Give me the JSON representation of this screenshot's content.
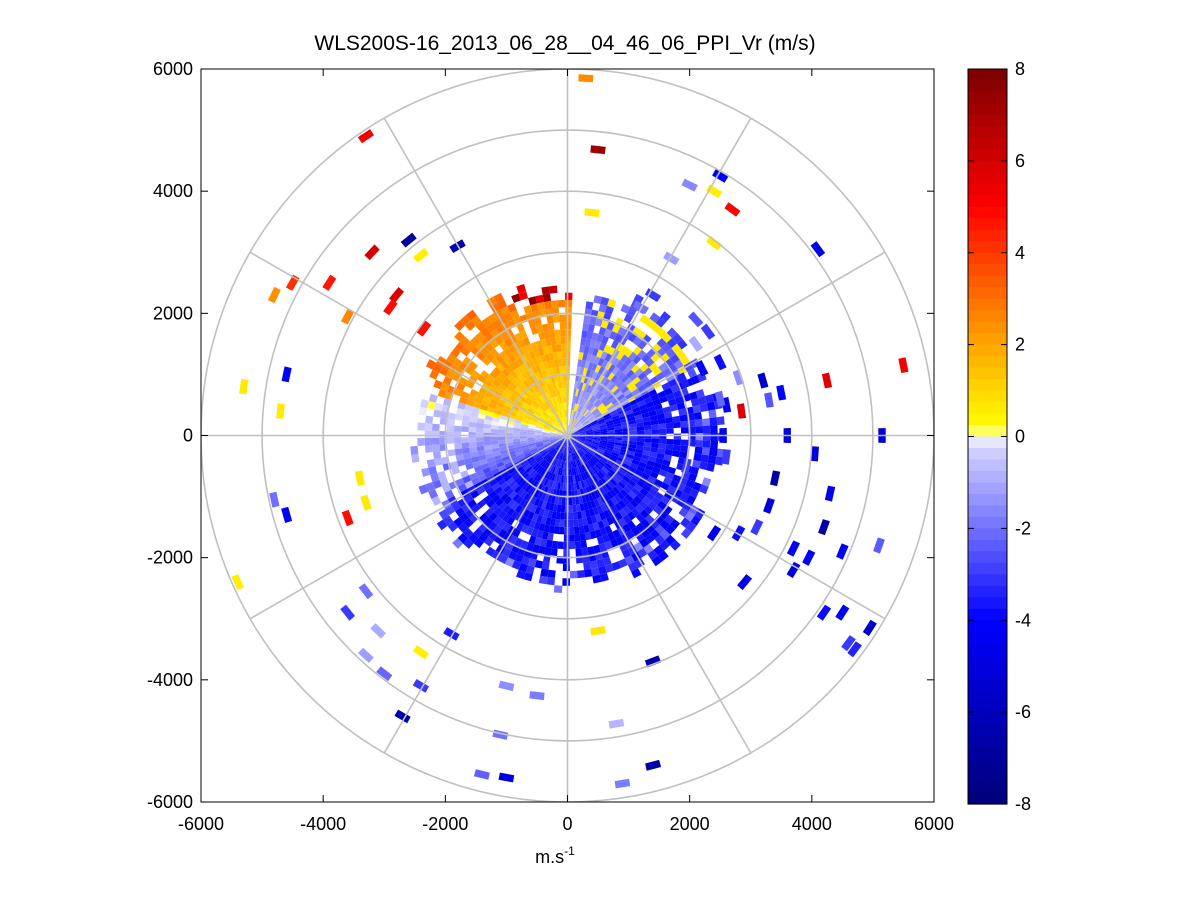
{
  "chart_data": {
    "type": "heatmap",
    "subtype": "polar-ppi-scan",
    "title": "WLS200S-16_2013_06_28__04_46_06_PPI_Vr (m/s)",
    "xlabel": "m.s",
    "xlabel_superscript": "-1",
    "ylabel": "",
    "xlim": [
      -6000,
      6000
    ],
    "ylim": [
      -6000,
      6000
    ],
    "x_ticks": [
      "-6000",
      "-4000",
      "-2000",
      "0",
      "2000",
      "4000",
      "6000"
    ],
    "y_ticks": [
      "6000",
      "4000",
      "2000",
      "0",
      "-2000",
      "-4000",
      "-6000"
    ],
    "range_rings_m": [
      1000,
      2000,
      3000,
      4000,
      5000,
      6000
    ],
    "spoke_angles_deg": [
      0,
      30,
      60,
      90,
      120,
      150,
      180,
      210,
      240,
      270,
      300,
      330
    ],
    "colorbar": {
      "range": [
        -8,
        8
      ],
      "ticks": [
        "8",
        "6",
        "4",
        "2",
        "0",
        "-2",
        "-4",
        "-6",
        "-8"
      ],
      "stops": [
        "#00007a",
        "#0000ff",
        "#d7d7ff",
        "#ffffff",
        "#ffff00",
        "#ff8c00",
        "#ff0000",
        "#7a0000"
      ]
    },
    "inner_field": {
      "max_range_m": 2450,
      "approach_sector": {
        "from_az_deg": 90,
        "to_az_deg": 285,
        "typical_vr": [
          -2.5,
          -4.5
        ]
      },
      "recede_sector": {
        "from_az_deg": 285,
        "to_az_deg": 360,
        "typical_vr": [
          1.0,
          3.0
        ]
      },
      "gap_sector": {
        "from_az_deg": 0,
        "to_az_deg": 8
      }
    },
    "sparse_gates": [
      {
        "x": 300,
        "y": 5850,
        "vr": 2.5
      },
      {
        "x": 500,
        "y": 4680,
        "vr": 7.2
      },
      {
        "x": 400,
        "y": 3650,
        "vr": 0.6
      },
      {
        "x": -3300,
        "y": 4900,
        "vr": 5.2
      },
      {
        "x": -3200,
        "y": 3000,
        "vr": 6.0
      },
      {
        "x": -2600,
        "y": 3200,
        "vr": -7.0
      },
      {
        "x": -2400,
        "y": 2950,
        "vr": 0.5
      },
      {
        "x": -1800,
        "y": 3100,
        "vr": -6.5
      },
      {
        "x": -4500,
        "y": 2500,
        "vr": 4.2
      },
      {
        "x": -4800,
        "y": 2300,
        "vr": 2.4
      },
      {
        "x": -3900,
        "y": 2500,
        "vr": 4.6
      },
      {
        "x": -3600,
        "y": 1950,
        "vr": 2.6
      },
      {
        "x": -2800,
        "y": 2300,
        "vr": 5.8
      },
      {
        "x": -2900,
        "y": 2100,
        "vr": 4.8
      },
      {
        "x": -2350,
        "y": 1750,
        "vr": 4.7
      },
      {
        "x": -5300,
        "y": 800,
        "vr": 0.6
      },
      {
        "x": -4600,
        "y": 1000,
        "vr": -4.2
      },
      {
        "x": -4700,
        "y": 400,
        "vr": 0.6
      },
      {
        "x": -3400,
        "y": -700,
        "vr": 0.6
      },
      {
        "x": -3300,
        "y": -1100,
        "vr": 0.6
      },
      {
        "x": -3600,
        "y": -1350,
        "vr": 4.8
      },
      {
        "x": -4800,
        "y": -1050,
        "vr": -2.0
      },
      {
        "x": -4600,
        "y": -1300,
        "vr": -4.2
      },
      {
        "x": -5400,
        "y": -2400,
        "vr": 0.5
      },
      {
        "x": -3300,
        "y": -2550,
        "vr": -2.0
      },
      {
        "x": -3600,
        "y": -2900,
        "vr": -3.0
      },
      {
        "x": -3100,
        "y": -3200,
        "vr": -1.0
      },
      {
        "x": -3300,
        "y": -3600,
        "vr": -1.2
      },
      {
        "x": -2400,
        "y": -3550,
        "vr": 0.5
      },
      {
        "x": -3000,
        "y": -3900,
        "vr": -2.2
      },
      {
        "x": -2400,
        "y": -4100,
        "vr": -3.0
      },
      {
        "x": -2700,
        "y": -4600,
        "vr": -6.5
      },
      {
        "x": -1900,
        "y": -3250,
        "vr": -3.5
      },
      {
        "x": -1000,
        "y": -4100,
        "vr": -1.5
      },
      {
        "x": -1100,
        "y": -4900,
        "vr": -2.0
      },
      {
        "x": -1400,
        "y": -5550,
        "vr": -2.3
      },
      {
        "x": -1000,
        "y": -5600,
        "vr": -5.0
      },
      {
        "x": -500,
        "y": -4260,
        "vr": -1.8
      },
      {
        "x": 500,
        "y": -3200,
        "vr": 0.7
      },
      {
        "x": 800,
        "y": -4720,
        "vr": -0.8
      },
      {
        "x": 1400,
        "y": -3700,
        "vr": -6.5
      },
      {
        "x": 1400,
        "y": -5400,
        "vr": -6.6
      },
      {
        "x": 900,
        "y": -5700,
        "vr": -1.8
      },
      {
        "x": 2400,
        "y": -1600,
        "vr": -4.5
      },
      {
        "x": 2800,
        "y": -1600,
        "vr": -3.8
      },
      {
        "x": 3100,
        "y": -1500,
        "vr": -3.0
      },
      {
        "x": 3300,
        "y": -1150,
        "vr": -5.0
      },
      {
        "x": 3400,
        "y": -700,
        "vr": -6.4
      },
      {
        "x": 3700,
        "y": -1850,
        "vr": -4.0
      },
      {
        "x": 3700,
        "y": -2200,
        "vr": -5.0
      },
      {
        "x": 2900,
        "y": -2400,
        "vr": -4.5
      },
      {
        "x": 4200,
        "y": -1500,
        "vr": -6.5
      },
      {
        "x": 4300,
        "y": -950,
        "vr": -4.5
      },
      {
        "x": 3950,
        "y": -2000,
        "vr": -4.0
      },
      {
        "x": 4200,
        "y": -2900,
        "vr": -3.8
      },
      {
        "x": 4500,
        "y": -2900,
        "vr": -4.3
      },
      {
        "x": 4600,
        "y": -3400,
        "vr": -3.0
      },
      {
        "x": 4500,
        "y": -1900,
        "vr": -4.0
      },
      {
        "x": 5100,
        "y": -1800,
        "vr": -2.4
      },
      {
        "x": 4950,
        "y": -3150,
        "vr": -5.6
      },
      {
        "x": 4700,
        "y": -3500,
        "vr": -3.4
      },
      {
        "x": 3600,
        "y": 0,
        "vr": -5.0
      },
      {
        "x": 4050,
        "y": -300,
        "vr": -4.8
      },
      {
        "x": 5150,
        "y": 0,
        "vr": -5.2
      },
      {
        "x": 5500,
        "y": 1150,
        "vr": 5.2
      },
      {
        "x": 4250,
        "y": 900,
        "vr": 5.6
      },
      {
        "x": 2850,
        "y": 400,
        "vr": 5.8
      },
      {
        "x": 2600,
        "y": 500,
        "vr": -4.0
      },
      {
        "x": 3200,
        "y": 900,
        "vr": -5.5
      },
      {
        "x": 3500,
        "y": 700,
        "vr": -4.0
      },
      {
        "x": 2500,
        "y": 1200,
        "vr": -3.8
      },
      {
        "x": 2800,
        "y": 950,
        "vr": -1.5
      },
      {
        "x": 3300,
        "y": 580,
        "vr": -2.5
      },
      {
        "x": 4100,
        "y": 3050,
        "vr": -5.0
      },
      {
        "x": 2700,
        "y": 3700,
        "vr": 5.0
      },
      {
        "x": 2400,
        "y": 4000,
        "vr": 0.5
      },
      {
        "x": 2500,
        "y": 4250,
        "vr": -4.4
      },
      {
        "x": 2000,
        "y": 4100,
        "vr": -1.6
      },
      {
        "x": 2400,
        "y": 3150,
        "vr": 0.6
      },
      {
        "x": 1700,
        "y": 2900,
        "vr": -1.2
      },
      {
        "x": 1400,
        "y": 2300,
        "vr": -3.0
      },
      {
        "x": 1200,
        "y": 2100,
        "vr": -2.0
      },
      {
        "x": 2100,
        "y": 1900,
        "vr": -2.5
      },
      {
        "x": 2300,
        "y": 1700,
        "vr": -3.0
      },
      {
        "x": 2100,
        "y": 1500,
        "vr": -1.0
      },
      {
        "x": 2200,
        "y": 1100,
        "vr": -4.2
      },
      {
        "x": 2500,
        "y": 600,
        "vr": -2.2
      },
      {
        "x": 1900,
        "y": 900,
        "vr": -3.5
      },
      {
        "x": 2400,
        "y": -200,
        "vr": -4.5
      },
      {
        "x": 2600,
        "y": -350,
        "vr": -3.0
      },
      {
        "x": 1950,
        "y": -500,
        "vr": -3.0
      },
      {
        "x": 2550,
        "y": 0,
        "vr": -4.5
      }
    ]
  }
}
